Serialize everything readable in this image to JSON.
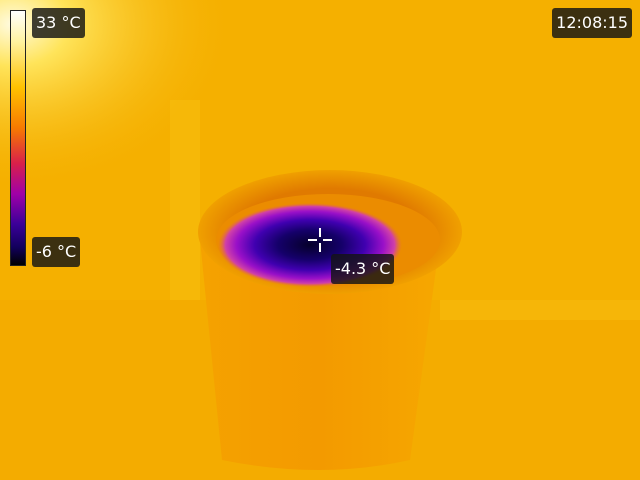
{
  "scale": {
    "max_label": "33 °C",
    "min_label": "-6 °C",
    "palette": [
      "#ffffff",
      "#fff3a0",
      "#ffc200",
      "#f77a00",
      "#d8204a",
      "#a000a8",
      "#3a0098",
      "#12005c",
      "#000000"
    ]
  },
  "clock": "12:08:15",
  "spot": {
    "temperature": "-4.3 °C"
  },
  "colors": {
    "background": "#f5b000",
    "cup_rim": "#e68a00",
    "cold_center": "#0a0040"
  }
}
